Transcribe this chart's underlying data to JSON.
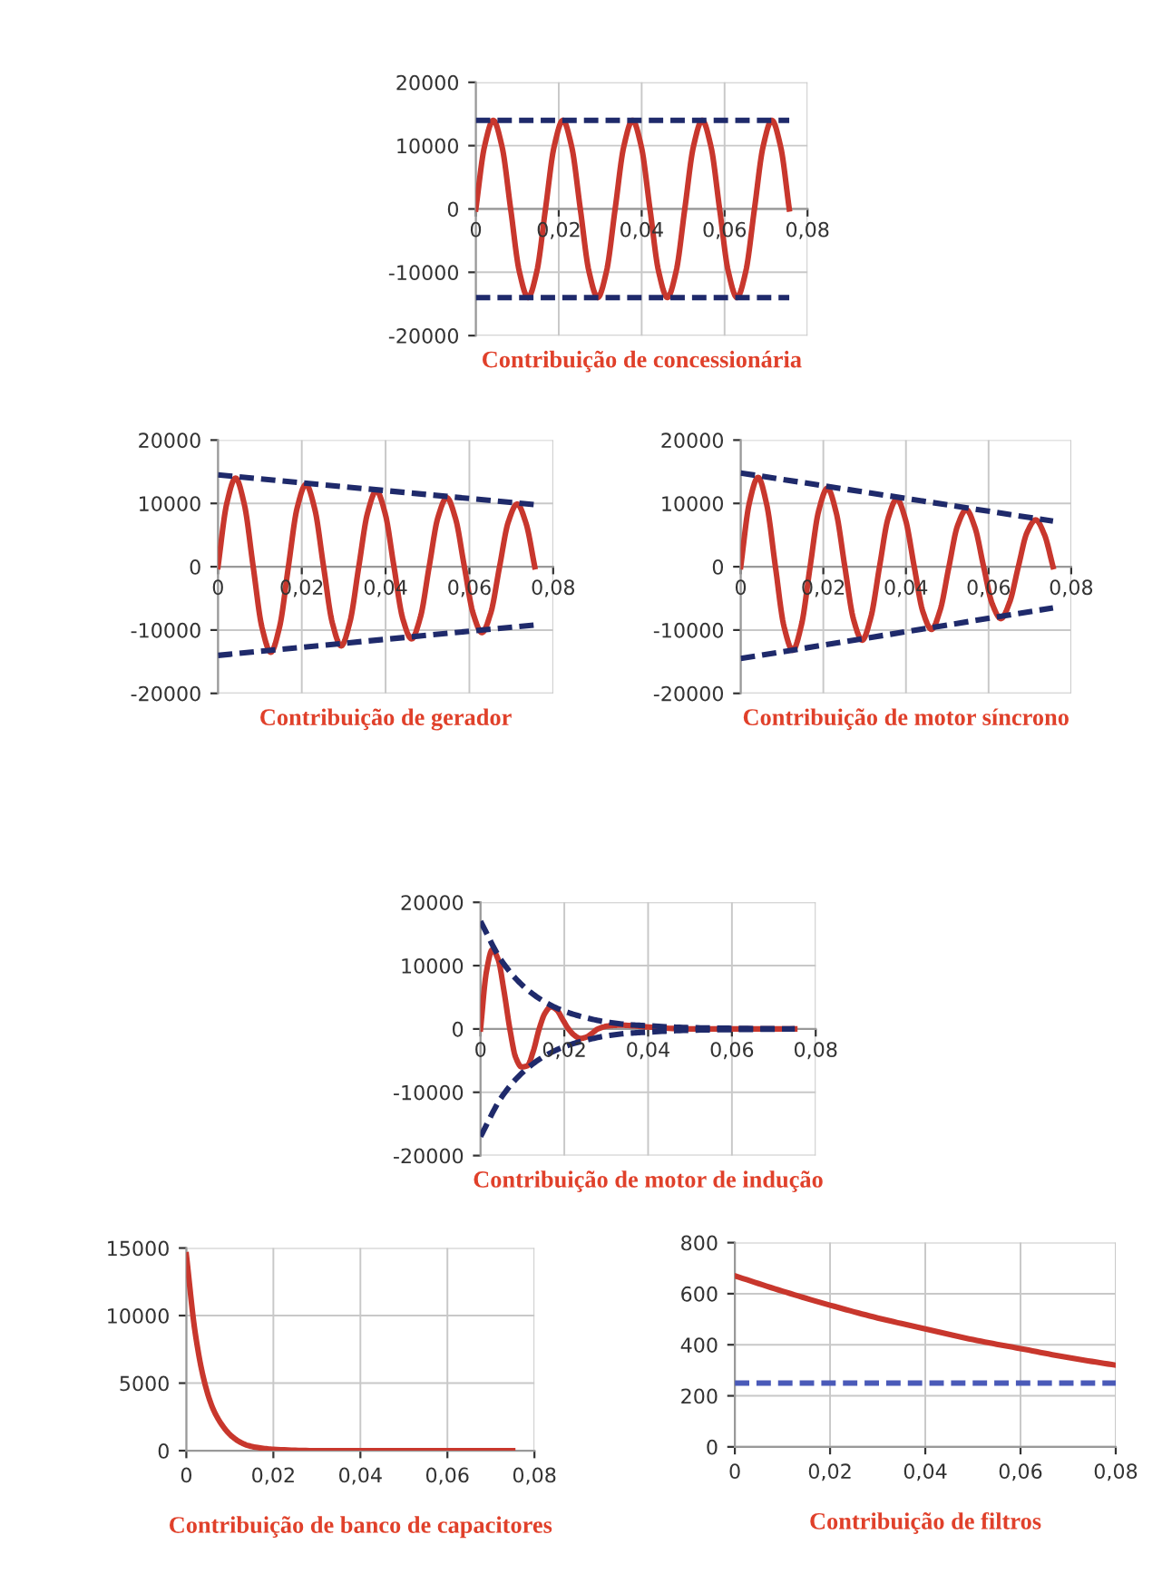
{
  "chart_data": [
    {
      "type": "line",
      "title": "Contribuição de concessionária",
      "xlim": [
        0,
        0.08
      ],
      "xticks": [
        0,
        {
          "value": 0.02,
          "label": "0,02"
        },
        {
          "value": 0.04,
          "label": "0,04"
        },
        {
          "value": 0.06,
          "label": "0,06"
        },
        {
          "value": 0.08,
          "label": "0,08"
        }
      ],
      "ylim": [
        -20000,
        20000
      ],
      "yticks": [
        -20000,
        -10000,
        0,
        10000,
        20000
      ],
      "grid": true,
      "x": [
        0,
        0.0021,
        0.0042,
        0.0063,
        0.0084,
        0.0105,
        0.0126,
        0.0147,
        0.0168,
        0.0189,
        0.021,
        0.0231,
        0.0252,
        0.0273,
        0.0294,
        0.0315,
        0.0336,
        0.0357,
        0.0378,
        0.0399,
        0.042,
        0.0441,
        0.0462,
        0.0483,
        0.0504,
        0.0525,
        0.0546,
        0.0567,
        0.0588,
        0.0609,
        0.063,
        0.0651,
        0.0672,
        0.0693,
        0.0714,
        0.0735,
        0.0756
      ],
      "series": [
        {
          "color": "#c8372d",
          "line_style": "solid",
          "values": [
            0,
            9900,
            14000,
            9900,
            0,
            -9900,
            -14000,
            -9900,
            0,
            9900,
            14000,
            9900,
            0,
            -9900,
            -14000,
            -9900,
            0,
            9900,
            14000,
            9900,
            0,
            -9900,
            -14000,
            -9900,
            0,
            9900,
            14000,
            9900,
            0,
            -9900,
            -14000,
            -9900,
            0,
            9900,
            14000,
            9900,
            0
          ]
        },
        {
          "color": "#1f2a6b",
          "line_style": "dashed",
          "x": [
            0,
            0.0756
          ],
          "values": [
            14000,
            14000
          ]
        },
        {
          "color": "#1f2a6b",
          "line_style": "dashed",
          "x": [
            0,
            0.0756
          ],
          "values": [
            -14000,
            -14000
          ]
        }
      ]
    },
    {
      "type": "line",
      "title": "Contribuição de gerador",
      "xlim": [
        0,
        0.08
      ],
      "xticks": [
        0,
        {
          "value": 0.02,
          "label": "0,02"
        },
        {
          "value": 0.04,
          "label": "0,04"
        },
        {
          "value": 0.06,
          "label": "0,06"
        },
        {
          "value": 0.08,
          "label": "0,08"
        }
      ],
      "ylim": [
        -20000,
        20000
      ],
      "yticks": [
        -20000,
        -10000,
        0,
        10000,
        20000
      ],
      "grid": true,
      "x": [
        0,
        0.0021,
        0.0042,
        0.0063,
        0.0084,
        0.0105,
        0.0126,
        0.0147,
        0.0168,
        0.0189,
        0.021,
        0.0231,
        0.0252,
        0.0273,
        0.0294,
        0.0315,
        0.0336,
        0.0357,
        0.0378,
        0.0399,
        0.042,
        0.0441,
        0.0462,
        0.0483,
        0.0504,
        0.0525,
        0.0546,
        0.0567,
        0.0588,
        0.0609,
        0.063,
        0.0651,
        0.0672,
        0.0693,
        0.0714,
        0.0735,
        0.0756
      ],
      "series": [
        {
          "color": "#c8372d",
          "line_style": "solid",
          "values": [
            0,
            10000,
            14000,
            9800,
            0,
            -9600,
            -13500,
            -9500,
            0,
            9300,
            13000,
            9100,
            0,
            -8900,
            -12500,
            -8700,
            0,
            8500,
            12000,
            8400,
            0,
            -8200,
            -11400,
            -8000,
            0,
            7800,
            10900,
            7600,
            0,
            -7400,
            -10400,
            -7300,
            0,
            7100,
            9900,
            6900,
            0
          ]
        },
        {
          "color": "#1f2a6b",
          "line_style": "dashed",
          "x": [
            0,
            0.0756
          ],
          "values": [
            14500,
            9800
          ]
        },
        {
          "color": "#1f2a6b",
          "line_style": "dashed",
          "x": [
            0,
            0.0756
          ],
          "values": [
            -14000,
            -9200
          ]
        }
      ]
    },
    {
      "type": "line",
      "title": "Contribuição de motor síncrono",
      "xlim": [
        0,
        0.08
      ],
      "xticks": [
        0,
        {
          "value": 0.02,
          "label": "0,02"
        },
        {
          "value": 0.04,
          "label": "0,04"
        },
        {
          "value": 0.06,
          "label": "0,06"
        },
        {
          "value": 0.08,
          "label": "0,08"
        }
      ],
      "ylim": [
        -20000,
        20000
      ],
      "yticks": [
        -20000,
        -10000,
        0,
        10000,
        20000
      ],
      "grid": true,
      "x": [
        0,
        0.0021,
        0.0042,
        0.0063,
        0.0084,
        0.0105,
        0.0126,
        0.0147,
        0.0168,
        0.0189,
        0.021,
        0.0231,
        0.0252,
        0.0273,
        0.0294,
        0.0315,
        0.0336,
        0.0357,
        0.0378,
        0.0399,
        0.042,
        0.0441,
        0.0462,
        0.0483,
        0.0504,
        0.0525,
        0.0546,
        0.0567,
        0.0588,
        0.0609,
        0.063,
        0.0651,
        0.0672,
        0.0693,
        0.0714,
        0.0735,
        0.0756
      ],
      "series": [
        {
          "color": "#c8372d",
          "line_style": "solid",
          "values": [
            0,
            10100,
            14100,
            9800,
            0,
            -9500,
            -13200,
            -9200,
            0,
            8900,
            12400,
            8600,
            0,
            -8300,
            -11600,
            -8000,
            0,
            7700,
            10700,
            7400,
            0,
            -7100,
            -9900,
            -6800,
            0,
            6500,
            9000,
            6200,
            0,
            -5900,
            -8200,
            -5600,
            0,
            5400,
            7400,
            5100,
            0
          ]
        },
        {
          "color": "#1f2a6b",
          "line_style": "dashed",
          "x": [
            0,
            0.0756
          ],
          "values": [
            14800,
            7200
          ]
        },
        {
          "color": "#1f2a6b",
          "line_style": "dashed",
          "x": [
            0,
            0.0756
          ],
          "values": [
            -14500,
            -6500
          ]
        }
      ]
    },
    {
      "type": "line",
      "title": "Contribuição de motor de indução",
      "xlim": [
        0,
        0.08
      ],
      "xticks": [
        0,
        {
          "value": 0.02,
          "label": "0,02"
        },
        {
          "value": 0.04,
          "label": "0,04"
        },
        {
          "value": 0.06,
          "label": "0,06"
        },
        {
          "value": 0.08,
          "label": "0,08"
        }
      ],
      "ylim": [
        -20000,
        20000
      ],
      "yticks": [
        -20000,
        -10000,
        0,
        10000,
        20000
      ],
      "grid": true,
      "series": [
        {
          "color": "#c8372d",
          "line_style": "solid",
          "x": [
            0,
            0.0014,
            0.0028,
            0.0042,
            0.0056,
            0.007,
            0.0084,
            0.0098,
            0.0112,
            0.0126,
            0.014,
            0.0154,
            0.0168,
            0.0182,
            0.0196,
            0.021,
            0.0224,
            0.0238,
            0.0252,
            0.0266,
            0.028,
            0.0308,
            0.0336,
            0.04,
            0.05,
            0.06,
            0.075
          ],
          "values": [
            0,
            9000,
            12500,
            11000,
            6000,
            0,
            -4500,
            -6000,
            -5800,
            -3500,
            0,
            2500,
            3500,
            3000,
            1500,
            0,
            -1000,
            -1500,
            -1300,
            -700,
            0,
            500,
            600,
            300,
            0,
            0,
            0
          ]
        },
        {
          "color": "#1f2a6b",
          "line_style": "dashed",
          "x": [
            0,
            0.005,
            0.01,
            0.015,
            0.02,
            0.025,
            0.03,
            0.035,
            0.04,
            0.05,
            0.06,
            0.075
          ],
          "values": [
            17000,
            10800,
            6900,
            4400,
            2800,
            1800,
            1100,
            700,
            500,
            200,
            100,
            0
          ]
        },
        {
          "color": "#1f2a6b",
          "line_style": "dashed",
          "x": [
            0,
            0.005,
            0.01,
            0.015,
            0.02,
            0.025,
            0.03,
            0.035,
            0.04,
            0.05,
            0.06,
            0.075
          ],
          "values": [
            -17000,
            -10800,
            -6900,
            -4400,
            -2800,
            -1800,
            -1100,
            -700,
            -500,
            -200,
            -100,
            0
          ]
        }
      ]
    },
    {
      "type": "line",
      "title": "Contribuição de banco de capacitores",
      "xlim": [
        0,
        0.08
      ],
      "xticks": [
        0,
        {
          "value": 0.02,
          "label": "0,02"
        },
        {
          "value": 0.04,
          "label": "0,04"
        },
        {
          "value": 0.06,
          "label": "0,06"
        },
        {
          "value": 0.08,
          "label": "0,08"
        }
      ],
      "ylim": [
        0,
        15000
      ],
      "yticks": [
        0,
        5000,
        10000,
        15000
      ],
      "grid": true,
      "series": [
        {
          "color": "#c8372d",
          "line_style": "solid",
          "x": [
            0,
            0.002,
            0.004,
            0.006,
            0.008,
            0.01,
            0.012,
            0.014,
            0.016,
            0.02,
            0.03,
            0.075
          ],
          "values": [
            14500,
            8800,
            5300,
            3200,
            2000,
            1200,
            700,
            400,
            250,
            100,
            0,
            0
          ]
        }
      ]
    },
    {
      "type": "line",
      "title": "Contribuição de filtros",
      "xlim": [
        0,
        0.08
      ],
      "xticks": [
        0,
        {
          "value": 0.02,
          "label": "0,02"
        },
        {
          "value": 0.04,
          "label": "0,04"
        },
        {
          "value": 0.06,
          "label": "0,06"
        },
        {
          "value": 0.08,
          "label": "0,08"
        }
      ],
      "ylim": [
        0,
        800
      ],
      "yticks": [
        0,
        200,
        400,
        600,
        800
      ],
      "grid": true,
      "series": [
        {
          "color": "#c8372d",
          "line_style": "solid",
          "x": [
            0,
            0.01,
            0.02,
            0.03,
            0.04,
            0.05,
            0.06,
            0.07,
            0.08
          ],
          "values": [
            670,
            610,
            555,
            505,
            462,
            420,
            385,
            350,
            320
          ]
        },
        {
          "color": "#4a5ab8",
          "line_style": "dashed",
          "x": [
            0,
            0.08
          ],
          "values": [
            250,
            250
          ]
        }
      ]
    }
  ]
}
